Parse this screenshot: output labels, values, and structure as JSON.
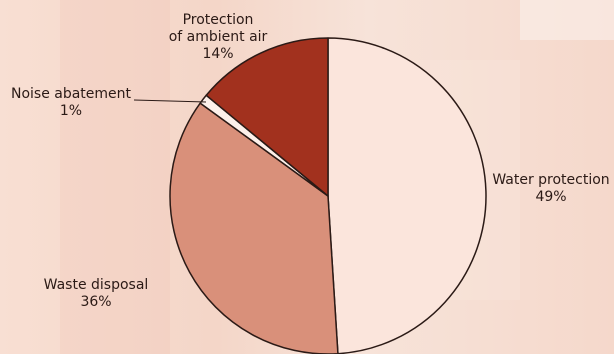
{
  "chart_data": {
    "type": "pie",
    "slices": [
      {
        "label": "Water protection",
        "value": 49,
        "color": "#fbe5dc"
      },
      {
        "label": "Waste disposal",
        "value": 36,
        "color": "#d9907a"
      },
      {
        "label": "Noise abatement",
        "value": 1,
        "color": "#fdf0ea"
      },
      {
        "label": "Protection of ambient air",
        "value": 14,
        "color": "#a2311e"
      }
    ]
  },
  "labels": {
    "water": {
      "name": "Water protection",
      "pct": "49%"
    },
    "waste": {
      "name": "Waste disposal",
      "pct": "36%"
    },
    "noise": {
      "name": "Noise abatement",
      "pct": "1%"
    },
    "air": {
      "line1": "Protection",
      "line2": "of ambient air",
      "pct": "14%"
    }
  }
}
